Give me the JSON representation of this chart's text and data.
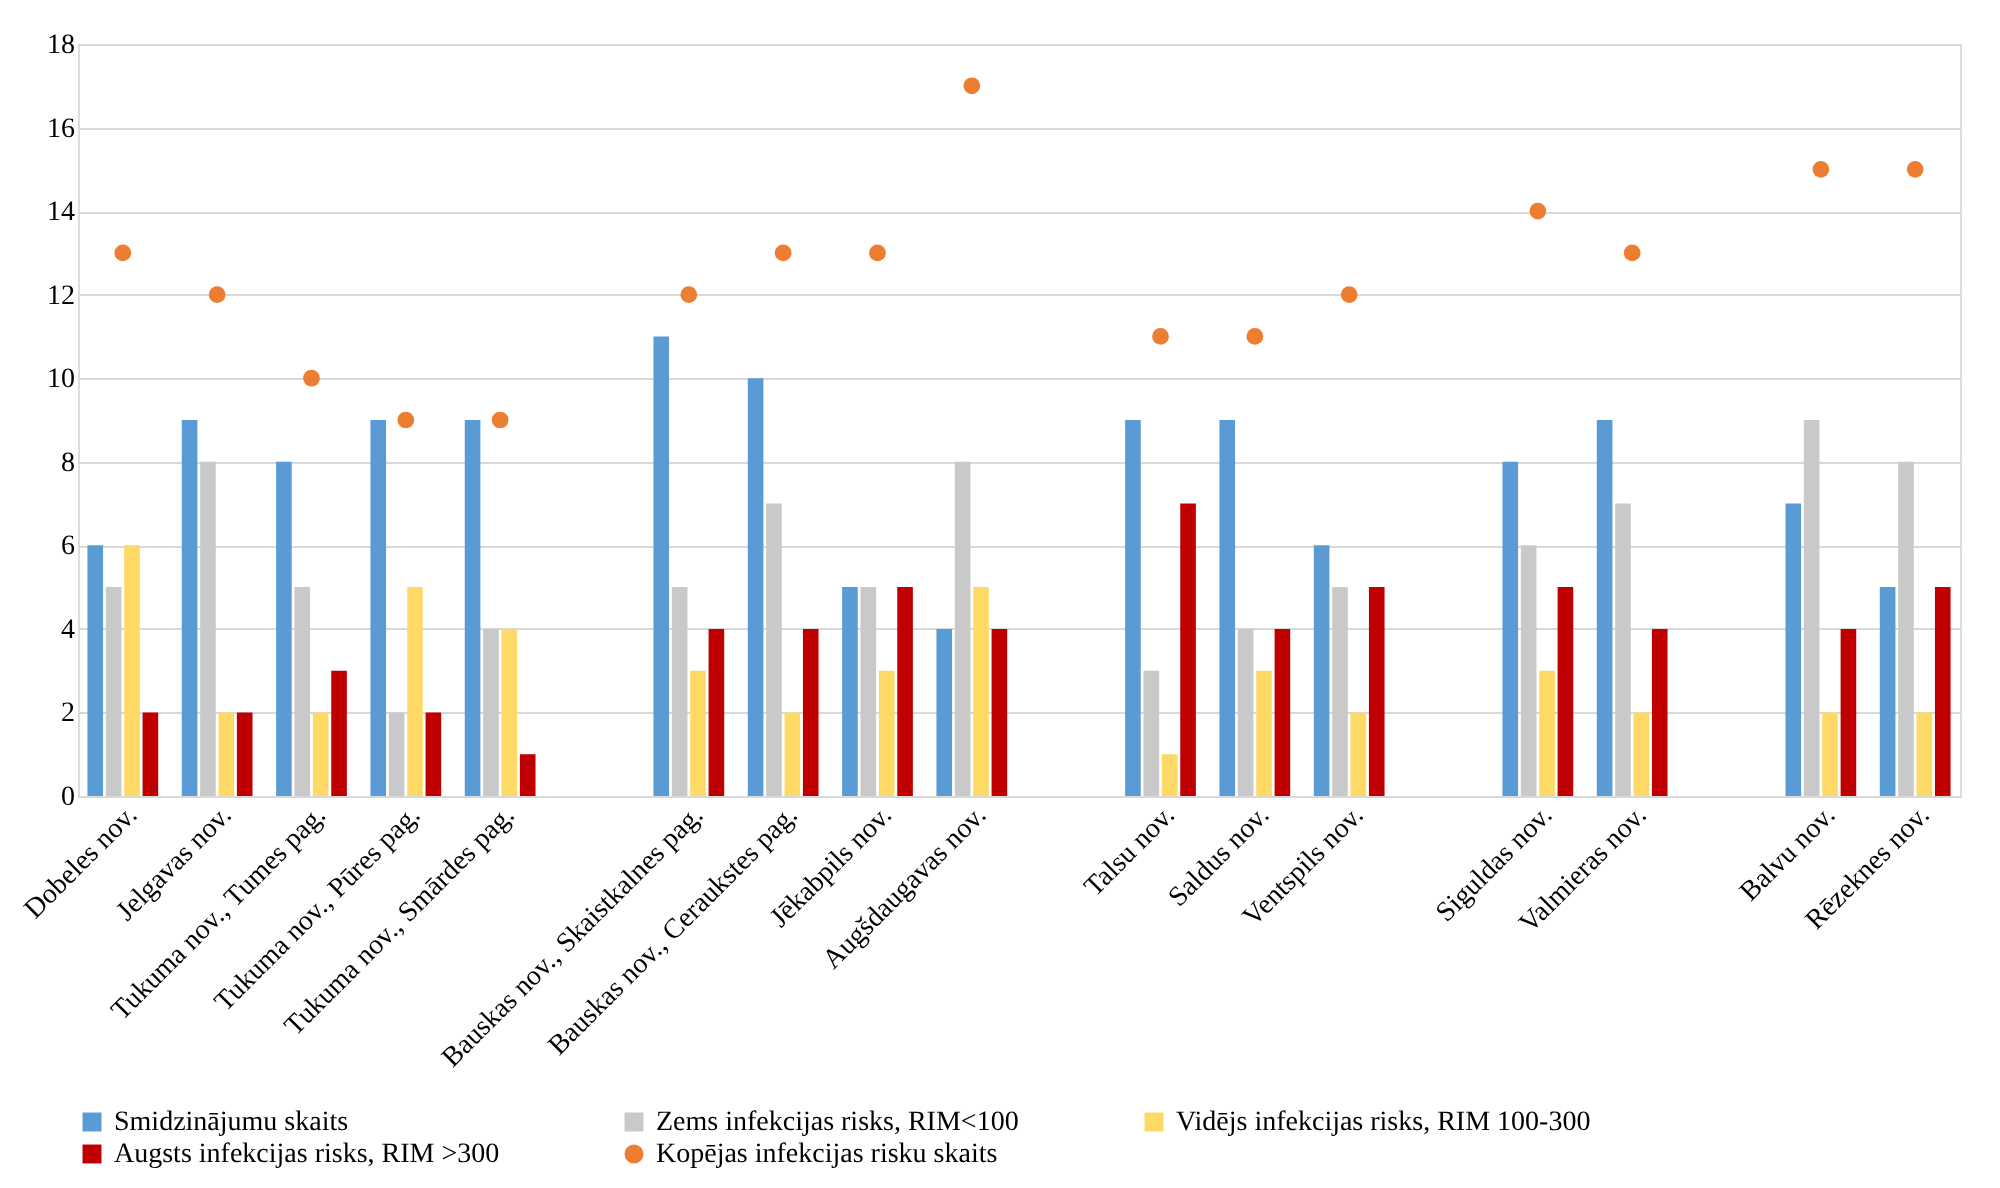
{
  "chart_data": {
    "type": "bar",
    "categories": [
      "Dobeles nov.",
      "Jelgavas nov.",
      "Tukuma nov., Tumes pag.",
      "Tukuma nov., Pūres pag.",
      "Tukuma nov., Smārdes pag.",
      null,
      "Bauskas nov., Skaistkalnes pag.",
      "Bauskas nov., Ceraukstes pag.",
      "Jēkabpils nov.",
      "Augšdaugavas nov.",
      null,
      "Talsu nov.",
      "Saldus nov.",
      "Ventspils nov.",
      null,
      "Siguldas nov.",
      "Valmieras nov.",
      null,
      "Balvu nov.",
      "Rēzeknes nov."
    ],
    "series": [
      {
        "name": "Smidzinājumu skaits",
        "color": "#5b9bd5",
        "values": [
          6,
          9,
          8,
          9,
          9,
          null,
          11,
          10,
          5,
          4,
          null,
          9,
          9,
          6,
          null,
          8,
          9,
          null,
          7,
          5
        ]
      },
      {
        "name": "Zems infekcijas risks, RIM<100",
        "color": "#c9c9c9",
        "values": [
          5,
          8,
          5,
          2,
          4,
          null,
          5,
          7,
          5,
          8,
          null,
          3,
          4,
          5,
          null,
          6,
          7,
          null,
          9,
          8
        ]
      },
      {
        "name": "Vidējs infekcijas risks, RIM 100-300",
        "color": "#ffd966",
        "values": [
          6,
          2,
          2,
          5,
          4,
          null,
          3,
          2,
          3,
          5,
          null,
          1,
          3,
          2,
          null,
          3,
          2,
          null,
          2,
          2
        ]
      },
      {
        "name": "Augsts infekcijas risks, RIM >300",
        "color": "#c00000",
        "values": [
          2,
          2,
          3,
          2,
          1,
          null,
          4,
          4,
          5,
          4,
          null,
          7,
          4,
          5,
          null,
          5,
          4,
          null,
          4,
          5
        ]
      },
      {
        "name": "Kopējas infekcijas risku skaits",
        "color": "#ed7d31",
        "type": "scatter",
        "marker": "circle",
        "values": [
          13,
          12,
          10,
          9,
          9,
          null,
          12,
          13,
          13,
          17,
          null,
          11,
          11,
          12,
          null,
          14,
          13,
          null,
          15,
          15
        ]
      }
    ],
    "ylim": [
      0,
      18
    ],
    "yticks": [
      0,
      2,
      4,
      6,
      8,
      10,
      12,
      14,
      16,
      18
    ],
    "grid": "y",
    "legend": "bottom"
  }
}
